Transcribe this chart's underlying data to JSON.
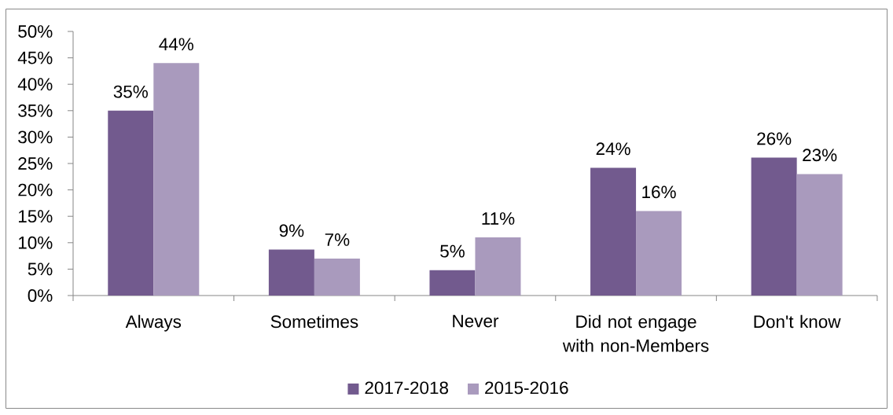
{
  "chart_data": {
    "type": "bar",
    "categories": [
      "Always",
      "Sometimes",
      "Never",
      "Did not engage with non-Members",
      "Don't know"
    ],
    "series": [
      {
        "name": "2017-2018",
        "color": "#725a8e",
        "values": [
          35,
          8.7,
          4.8,
          24.2,
          26.1
        ],
        "value_labels": [
          "35%",
          "9%",
          "5%",
          "24%",
          "26%"
        ]
      },
      {
        "name": "2015-2016",
        "color": "#a99abd",
        "values": [
          44,
          7,
          11,
          16,
          23
        ],
        "value_labels": [
          "44%",
          "7%",
          "11%",
          "16%",
          "23%"
        ]
      }
    ],
    "ylim": [
      0,
      50
    ],
    "yticks": [
      {
        "value": 0,
        "label": "0%"
      },
      {
        "value": 5,
        "label": "5%"
      },
      {
        "value": 10,
        "label": "10%"
      },
      {
        "value": 15,
        "label": "15%"
      },
      {
        "value": 20,
        "label": "20%"
      },
      {
        "value": 25,
        "label": "25%"
      },
      {
        "value": 30,
        "label": "30%"
      },
      {
        "value": 35,
        "label": "35%"
      },
      {
        "value": 40,
        "label": "40%"
      },
      {
        "value": 45,
        "label": "45%"
      },
      {
        "value": 50,
        "label": "50%"
      }
    ],
    "grid": false,
    "legend": "bottom"
  }
}
